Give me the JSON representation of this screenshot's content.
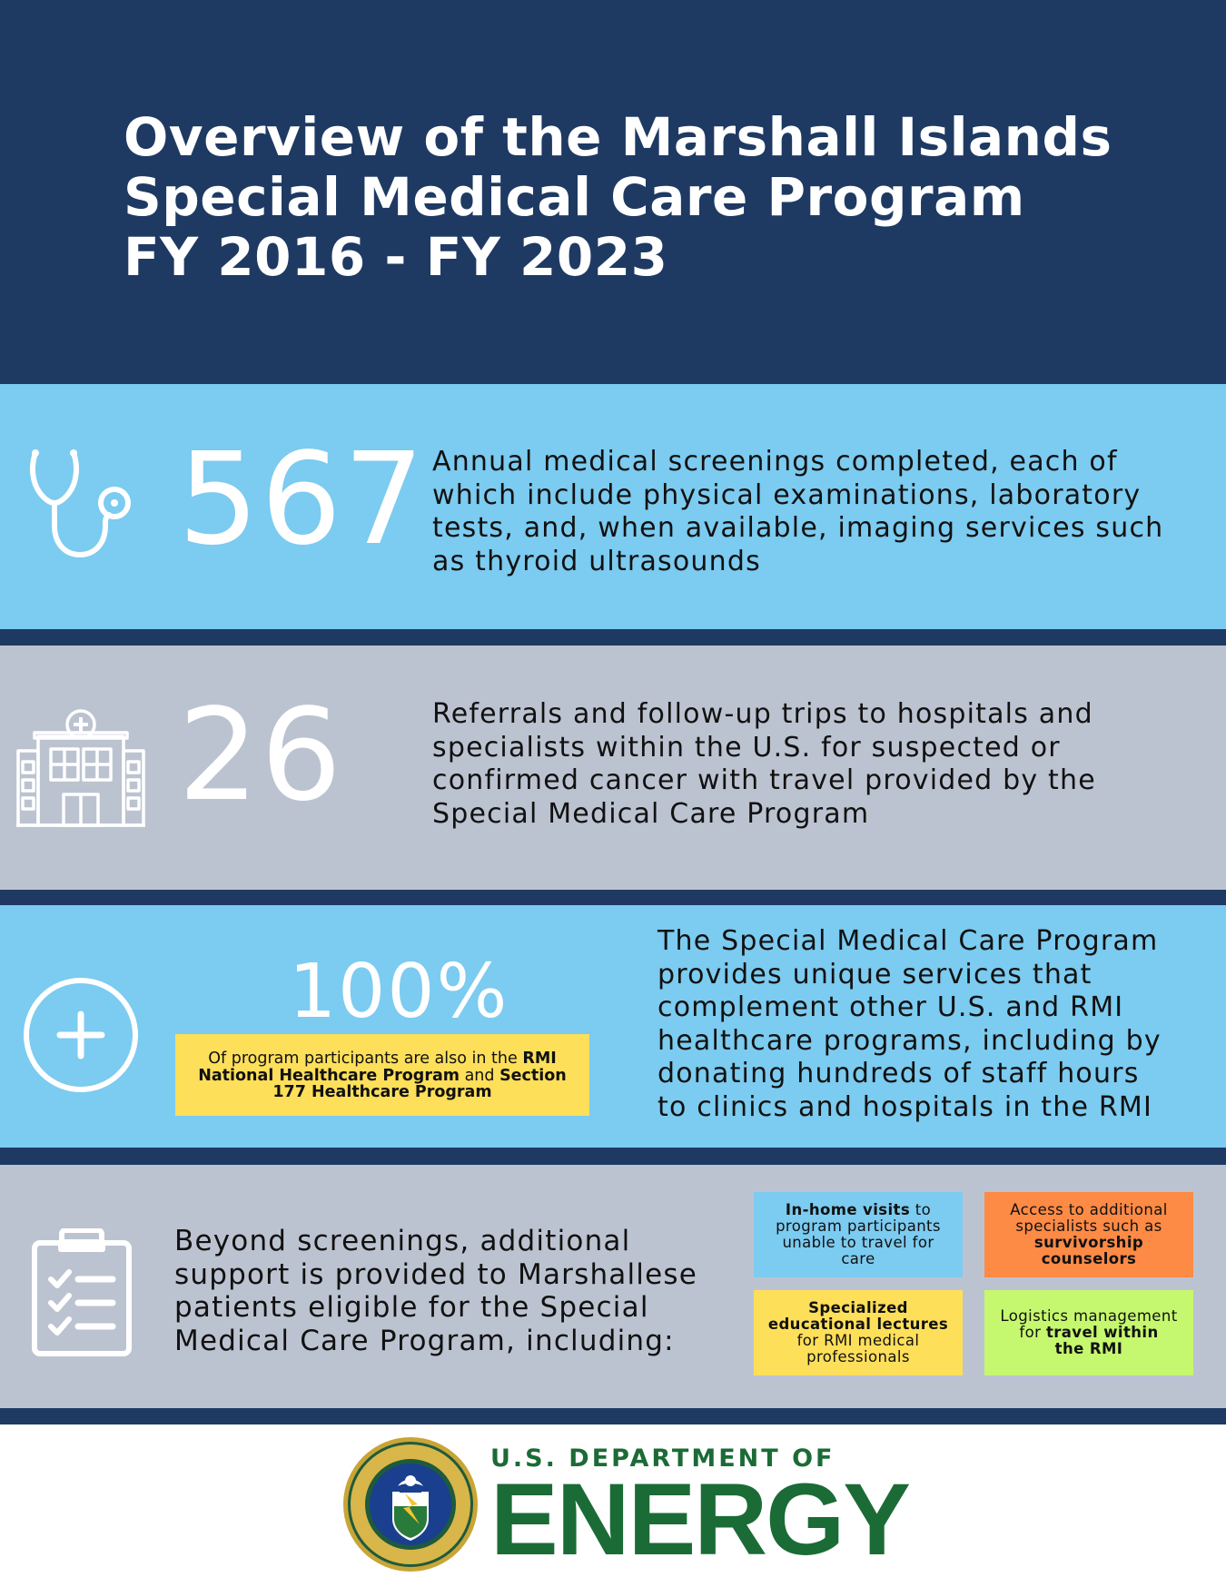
{
  "header": {
    "title_lines": [
      "Overview of the Marshall Islands",
      "Special Medical Care Program",
      "FY 2016 - FY 2023"
    ]
  },
  "stats": [
    {
      "icon": "stethoscope-icon",
      "value": "567",
      "description_lines": [
        "Annual medical screenings completed, each of",
        "which include physical examinations, laboratory",
        "tests, and, when available, imaging services such",
        "as thyroid ultrasounds"
      ]
    },
    {
      "icon": "hospital-icon",
      "value": "26",
      "description_lines": [
        "Referrals and follow-up trips to hospitals and",
        "specialists within the U.S. for suspected or",
        "confirmed cancer with travel provided by the",
        "Special Medical Care Program"
      ]
    },
    {
      "icon": "plus-circle-icon",
      "value": "100%",
      "callout": {
        "line1_normal": "Of program participants are also in the ",
        "line1_bold": "RMI",
        "line2_bold_a": "National Healthcare Program",
        "line2_normal": " and ",
        "line2_bold_b": "Section",
        "line3_bold": "177 Healthcare Program"
      },
      "description_lines": [
        "The Special Medical Care Program",
        "provides unique services that",
        "complement other U.S. and RMI",
        "healthcare programs, including by",
        "donating hundreds of staff hours",
        "to clinics and hospitals in the RMI"
      ]
    }
  ],
  "support": {
    "icon": "clipboard-checklist-icon",
    "intro_lines": [
      "Beyond screenings, additional",
      "support is provided to Marshallese",
      "patients eligible for the Special",
      "Medical Care Program, including:"
    ],
    "items": [
      {
        "color": "#7ccbf0",
        "bold_a": "In-home visits",
        "normal_a": " to",
        "line2": "program participants",
        "line3": "unable to travel for",
        "line4": "care"
      },
      {
        "color": "#fd8a45",
        "line1": "Access to additional",
        "line2": "specialists such as",
        "bold_a": "survivorship",
        "bold_b": "counselors"
      },
      {
        "color": "#fedf5a",
        "bold_a": "Specialized",
        "bold_b": "educational lectures",
        "line3": "for RMI medical",
        "line4": "professionals"
      },
      {
        "color": "#c5f86e",
        "line1": "Logistics management",
        "normal_a": "for ",
        "bold_a": "travel within",
        "bold_b": "the RMI"
      }
    ]
  },
  "footer": {
    "logo": "doe-seal-icon",
    "org_small": "U.S. DEPARTMENT OF",
    "org_big": "ENERGY",
    "brand_color": "#1b6b36"
  }
}
